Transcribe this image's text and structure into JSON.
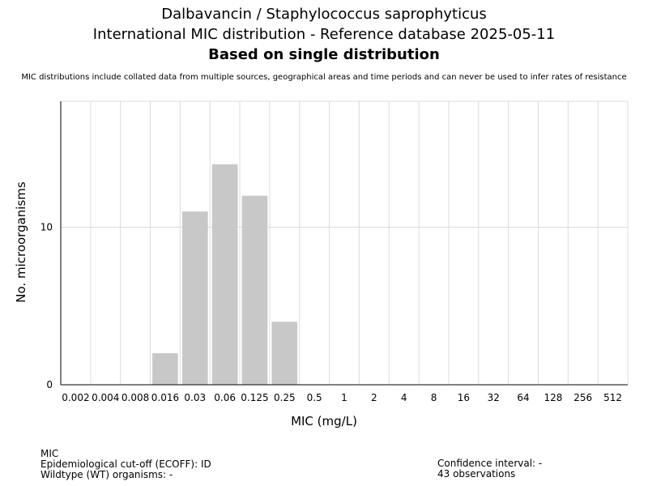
{
  "header": {
    "title_line1": "Dalbavancin / Staphylococcus saprophyticus",
    "title_line2": "International MIC distribution - Reference database 2025-05-11",
    "title_line3": "Based on single distribution",
    "subtitle": "MIC distributions include collated data from multiple sources, geographical areas and time periods and can never be used to infer rates of resistance"
  },
  "chart_data": {
    "type": "bar",
    "categories": [
      "0.002",
      "0.004",
      "0.008",
      "0.016",
      "0.03",
      "0.06",
      "0.125",
      "0.25",
      "0.5",
      "1",
      "2",
      "4",
      "8",
      "16",
      "32",
      "64",
      "128",
      "256",
      "512"
    ],
    "values": [
      0,
      0,
      0,
      2,
      11,
      14,
      12,
      4,
      0,
      0,
      0,
      0,
      0,
      0,
      0,
      0,
      0,
      0,
      0
    ],
    "xlabel": "MIC (mg/L)",
    "ylabel": "No. microorganisms",
    "ylim": [
      0,
      18
    ],
    "yticks": [
      0,
      10
    ],
    "grid": true,
    "bar_color": "#c8c8c8",
    "grid_color": "#dcdcdc"
  },
  "footer": {
    "left_line1": "MIC",
    "left_line2": "Epidemiological cut-off (ECOFF): ID",
    "left_line3": "Wildtype (WT) organisms:  -",
    "right_line1": "Confidence interval: -",
    "right_line2": "43 observations"
  }
}
